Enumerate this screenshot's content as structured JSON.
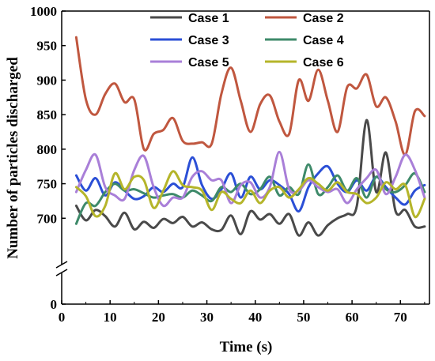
{
  "chart_data": {
    "type": "line",
    "xlabel": "Time (s)",
    "ylabel": "Number of particles discharged",
    "xlim": [
      0,
      76
    ],
    "ylim_lower": [
      0,
      50
    ],
    "ylim_upper": [
      650,
      1000
    ],
    "axis_break": true,
    "x_ticks": [
      "0",
      "10",
      "20",
      "30",
      "40",
      "50",
      "60",
      "70"
    ],
    "x_tick_values": [
      0,
      10,
      20,
      30,
      40,
      50,
      60,
      70
    ],
    "y_ticks_lower": [
      "0"
    ],
    "y_tick_lower_values": [
      0
    ],
    "y_ticks_upper": [
      "700",
      "750",
      "800",
      "850",
      "900",
      "950",
      "1000"
    ],
    "y_tick_upper_values": [
      700,
      750,
      800,
      850,
      900,
      950,
      1000
    ],
    "legend_position": "top",
    "grid": false,
    "series": [
      {
        "name": "Case 1",
        "color": "#4a4a4a",
        "x": [
          3,
          5,
          7,
          9,
          11,
          13,
          15,
          17,
          19,
          21,
          23,
          25,
          27,
          29,
          31,
          33,
          35,
          37,
          39,
          41,
          43,
          45,
          47,
          49,
          51,
          53,
          55,
          57,
          59,
          61,
          63,
          65,
          67,
          69,
          71,
          73,
          75
        ],
        "values": [
          718,
          697,
          712,
          703,
          688,
          708,
          684,
          695,
          686,
          699,
          693,
          702,
          688,
          694,
          684,
          683,
          704,
          677,
          710,
          698,
          706,
          692,
          706,
          675,
          694,
          675,
          690,
          700,
          706,
          718,
          842,
          738,
          795,
          710,
          712,
          688,
          688
        ]
      },
      {
        "name": "Case 2",
        "color": "#c0573f",
        "x": [
          3,
          5,
          7,
          9,
          11,
          13,
          15,
          17,
          19,
          21,
          23,
          25,
          27,
          29,
          31,
          33,
          35,
          37,
          39,
          41,
          43,
          45,
          47,
          49,
          51,
          53,
          55,
          57,
          59,
          61,
          63,
          65,
          67,
          69,
          71,
          73,
          75
        ],
        "values": [
          962,
          872,
          850,
          880,
          895,
          868,
          872,
          800,
          822,
          828,
          845,
          812,
          808,
          810,
          808,
          880,
          918,
          870,
          825,
          865,
          878,
          840,
          822,
          900,
          870,
          915,
          870,
          825,
          890,
          888,
          908,
          862,
          875,
          840,
          792,
          855,
          848
        ]
      },
      {
        "name": "Case 3",
        "color": "#2b4fd6",
        "x": [
          3,
          5,
          7,
          9,
          11,
          13,
          15,
          17,
          19,
          21,
          23,
          25,
          27,
          29,
          31,
          33,
          35,
          37,
          39,
          41,
          43,
          45,
          47,
          49,
          51,
          53,
          55,
          57,
          59,
          61,
          63,
          65,
          67,
          69,
          71,
          73,
          75
        ],
        "values": [
          762,
          740,
          758,
          733,
          752,
          740,
          728,
          732,
          745,
          738,
          750,
          745,
          788,
          748,
          728,
          742,
          765,
          730,
          760,
          742,
          755,
          748,
          735,
          710,
          745,
          765,
          775,
          750,
          738,
          755,
          740,
          760,
          745,
          730,
          720,
          740,
          748
        ]
      },
      {
        "name": "Case 4",
        "color": "#3e8a6a",
        "x": [
          3,
          5,
          7,
          9,
          11,
          13,
          15,
          17,
          19,
          21,
          23,
          25,
          27,
          29,
          31,
          33,
          35,
          37,
          39,
          41,
          43,
          45,
          47,
          49,
          51,
          53,
          55,
          57,
          59,
          61,
          63,
          65,
          67,
          69,
          71,
          73,
          75
        ],
        "values": [
          692,
          722,
          718,
          738,
          750,
          740,
          742,
          736,
          730,
          733,
          735,
          730,
          740,
          733,
          725,
          745,
          738,
          750,
          735,
          742,
          760,
          733,
          745,
          735,
          778,
          735,
          745,
          762,
          740,
          758,
          730,
          760,
          742,
          738,
          748,
          765,
          738
        ]
      },
      {
        "name": "Case 5",
        "color": "#a97fd8",
        "x": [
          3,
          5,
          7,
          9,
          11,
          13,
          15,
          17,
          19,
          21,
          23,
          25,
          27,
          29,
          31,
          33,
          35,
          37,
          39,
          41,
          43,
          45,
          47,
          49,
          51,
          53,
          55,
          57,
          59,
          61,
          63,
          65,
          67,
          69,
          71,
          73,
          75
        ],
        "values": [
          738,
          770,
          792,
          745,
          733,
          728,
          770,
          790,
          745,
          718,
          730,
          730,
          760,
          768,
          755,
          755,
          722,
          748,
          752,
          730,
          745,
          796,
          742,
          740,
          755,
          745,
          738,
          742,
          722,
          742,
          758,
          770,
          735,
          760,
          792,
          770,
          730
        ]
      },
      {
        "name": "Case 6",
        "color": "#b5b52a",
        "x": [
          3,
          5,
          7,
          9,
          11,
          13,
          15,
          17,
          19,
          21,
          23,
          25,
          27,
          29,
          31,
          33,
          35,
          37,
          39,
          41,
          43,
          45,
          47,
          49,
          51,
          53,
          55,
          57,
          59,
          61,
          63,
          65,
          67,
          69,
          71,
          73,
          75
        ],
        "values": [
          745,
          732,
          703,
          718,
          765,
          742,
          760,
          755,
          715,
          740,
          768,
          748,
          745,
          740,
          712,
          738,
          728,
          722,
          740,
          722,
          740,
          745,
          730,
          742,
          758,
          750,
          740,
          752,
          738,
          735,
          722,
          730,
          752,
          742,
          748,
          702,
          728
        ]
      }
    ]
  }
}
